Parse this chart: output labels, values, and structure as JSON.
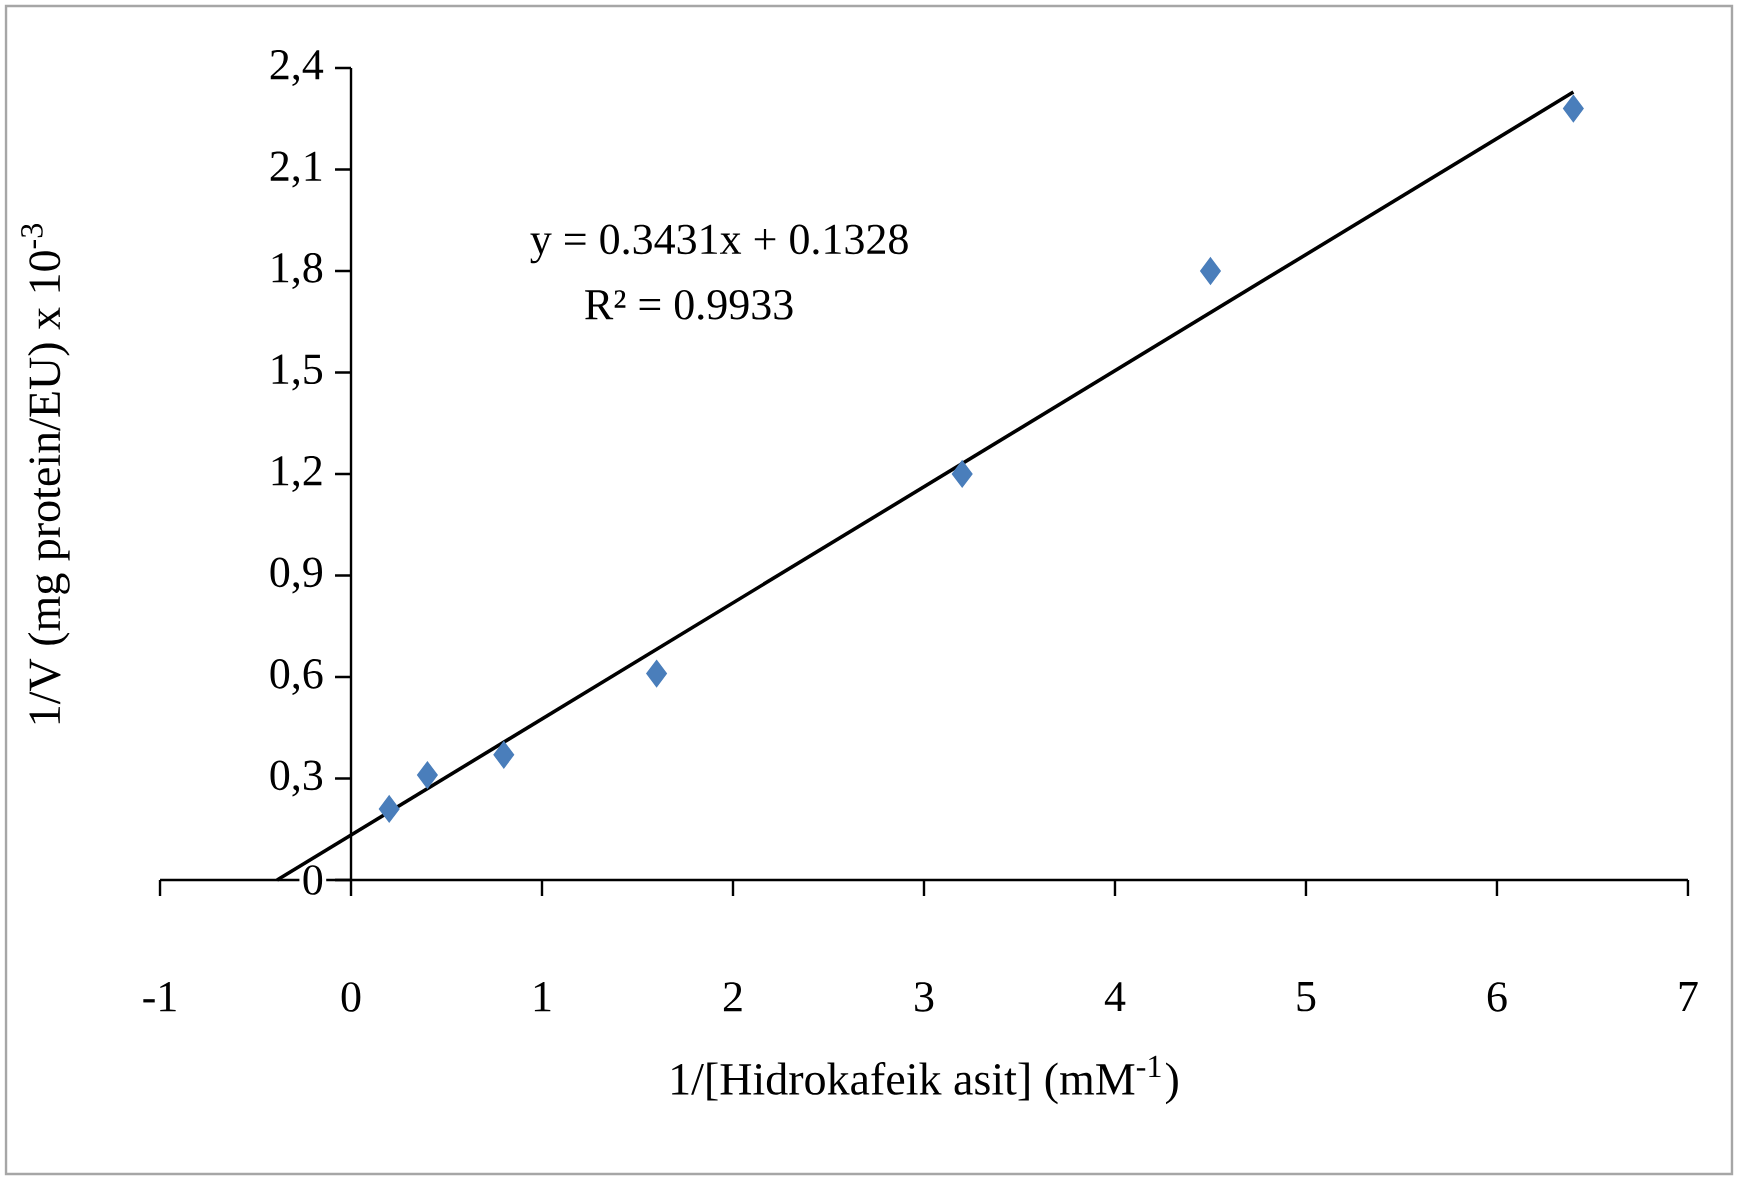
{
  "chart_data": {
    "type": "scatter",
    "xlabel": "1/[Hidrokafeik asit] (mM$^{-1}$)",
    "ylabel": "1/V (mg protein/EU) x 10$^{-3}$",
    "series": [
      {
        "color": "#4a7ebb",
        "marker": "diamond",
        "x": [
          0.2,
          0.4,
          0.8,
          1.6,
          3.2,
          4.5,
          6.4
        ],
        "values": [
          0.21,
          0.31,
          0.37,
          0.61,
          1.2,
          1.8,
          2.28
        ]
      },
      {
        "type": "line",
        "color": "#000000",
        "line_style": "solid",
        "x": [
          -0.387,
          6.4
        ],
        "values": [
          0,
          2.329
        ]
      }
    ],
    "xlim": [
      -1,
      7
    ],
    "xticks": [
      -1,
      0,
      1,
      2,
      3,
      4,
      5,
      6,
      7
    ],
    "ylim": [
      0,
      2.4
    ],
    "yticks": [
      {
        "value": 0,
        "label": "0"
      },
      {
        "value": 0.3,
        "label": "0,3"
      },
      {
        "value": 0.6,
        "label": "0,6"
      },
      {
        "value": 0.9,
        "label": "0,9"
      },
      {
        "value": 1.2,
        "label": "1,2"
      },
      {
        "value": 1.5,
        "label": "1,5"
      },
      {
        "value": 1.8,
        "label": "1,8"
      },
      {
        "value": 2.1,
        "label": "2,1"
      },
      {
        "value": 2.4,
        "label": "2,4"
      }
    ],
    "annotations": [
      "y = 0.3431x + 0.1328",
      "R² = 0.9933"
    ],
    "grid": false
  }
}
